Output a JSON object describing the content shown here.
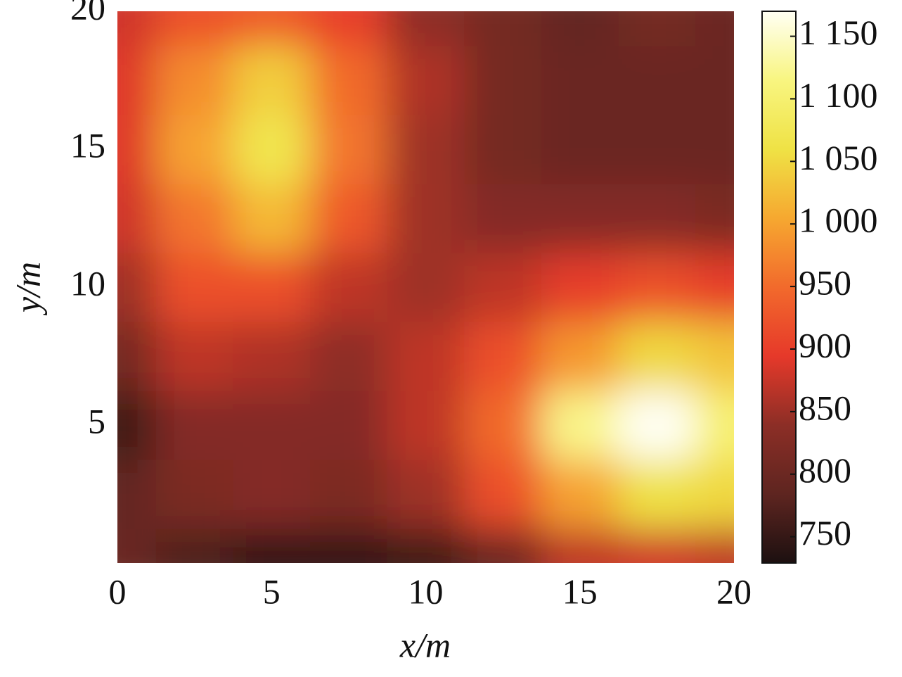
{
  "chart_data": {
    "type": "contour",
    "xlabel": "x/m",
    "ylabel": "y/m",
    "x": [
      0,
      2.5,
      5,
      7.5,
      10,
      12.5,
      15,
      17.5,
      20
    ],
    "y": [
      0,
      2.5,
      5,
      7.5,
      10,
      12.5,
      15,
      17.5,
      20
    ],
    "z": [
      [
        800,
        770,
        750,
        750,
        760,
        800,
        870,
        880,
        870
      ],
      [
        790,
        820,
        830,
        820,
        850,
        920,
        1000,
        1060,
        1050
      ],
      [
        760,
        830,
        830,
        830,
        870,
        950,
        1120,
        1170,
        1100
      ],
      [
        810,
        870,
        860,
        840,
        870,
        920,
        990,
        1050,
        1030
      ],
      [
        850,
        920,
        920,
        870,
        850,
        870,
        900,
        920,
        900
      ],
      [
        880,
        960,
        1020,
        930,
        850,
        830,
        830,
        830,
        820
      ],
      [
        890,
        1000,
        1070,
        960,
        850,
        810,
        800,
        800,
        800
      ],
      [
        890,
        980,
        1040,
        950,
        860,
        810,
        800,
        800,
        800
      ],
      [
        880,
        920,
        930,
        900,
        840,
        810,
        790,
        810,
        800
      ]
    ],
    "xlim": [
      0,
      20
    ],
    "ylim": [
      0,
      20
    ],
    "xticks": [
      0,
      5,
      10,
      15,
      20
    ],
    "yticks": [
      5,
      10,
      15,
      20
    ],
    "clim": [
      729,
      1170
    ],
    "cticks": [
      750,
      800,
      850,
      900,
      950,
      {
        "value": 1000,
        "label": "1 000"
      },
      {
        "value": 1050,
        "label": "1 050"
      },
      {
        "value": 1100,
        "label": "1 100"
      },
      {
        "value": 1150,
        "label": "1 150"
      }
    ],
    "colormap": [
      "#1c1010",
      "#5e2520",
      "#8c2e26",
      "#e6392a",
      "#f26a2c",
      "#f6a830",
      "#efe245",
      "#f8f580",
      "#fffff4"
    ]
  }
}
